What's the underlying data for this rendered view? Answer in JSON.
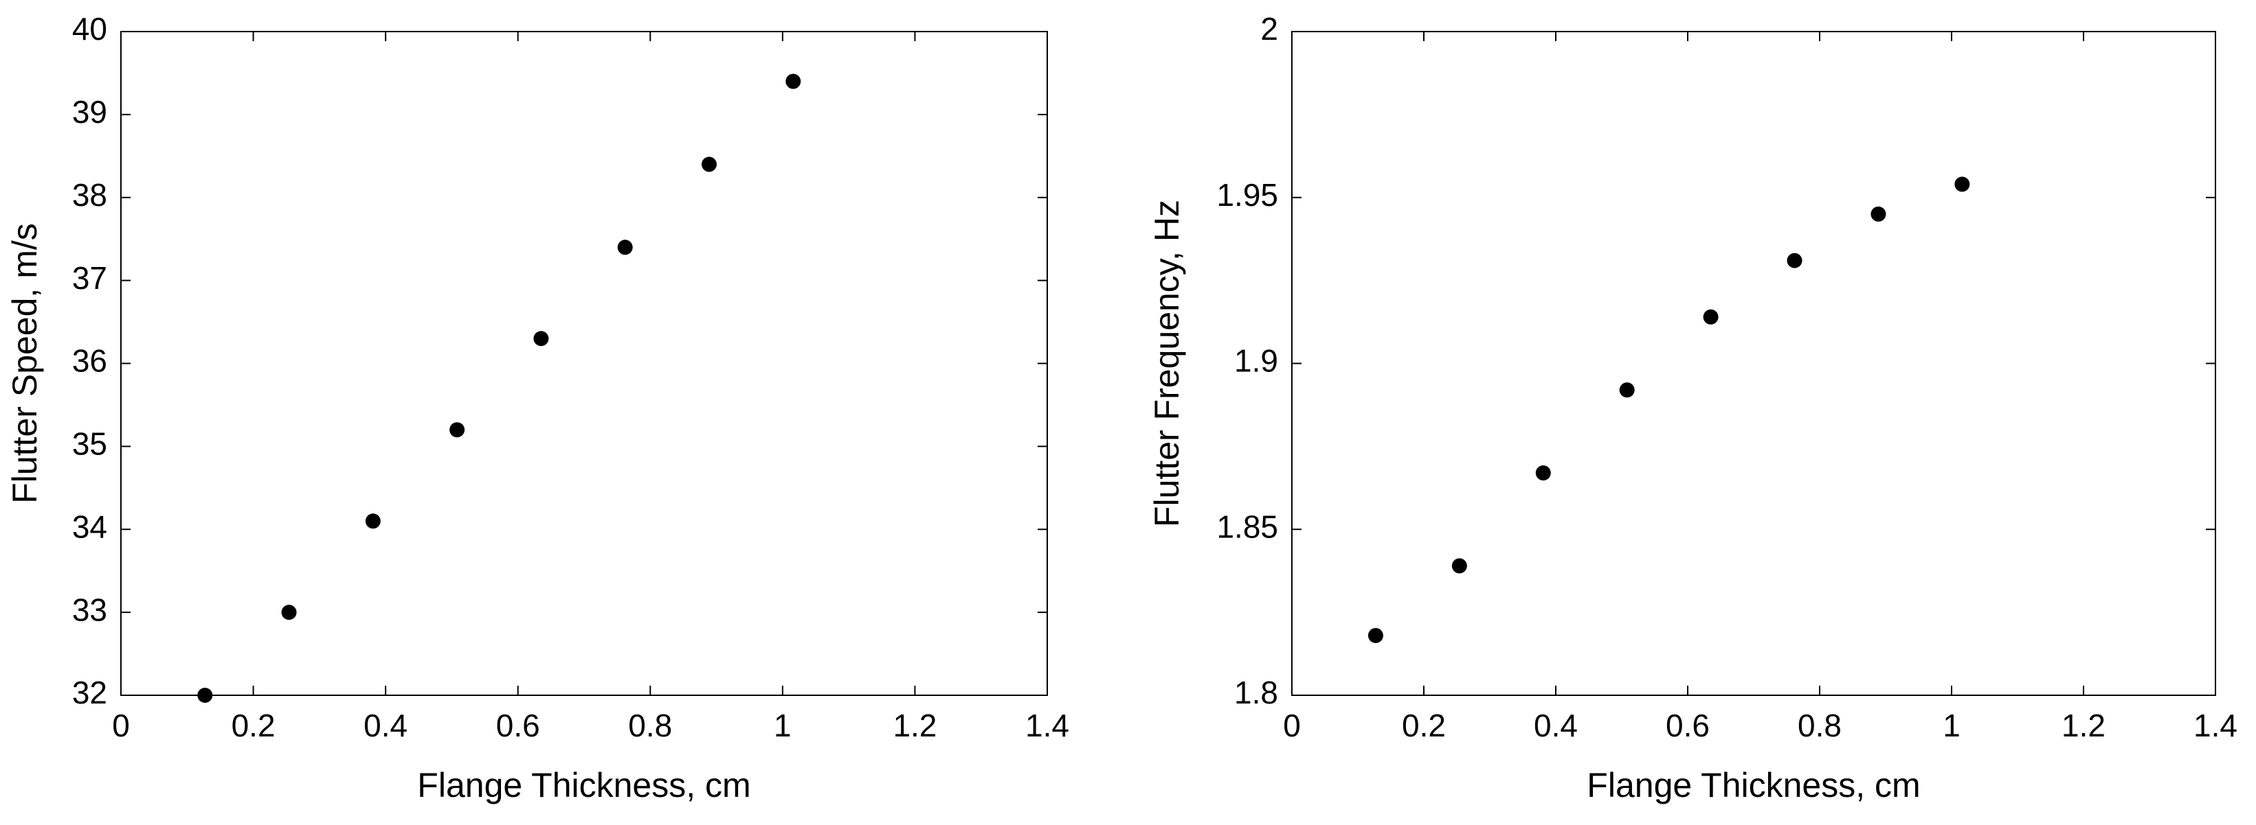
{
  "chart_data": [
    {
      "type": "scatter",
      "xlabel": "Flange Thickness, cm",
      "ylabel": "Flutter Speed, m/s",
      "x": [
        0.127,
        0.254,
        0.381,
        0.508,
        0.635,
        0.762,
        0.889,
        1.016
      ],
      "values": [
        32,
        33,
        34.1,
        35.2,
        36.3,
        37.4,
        38.4,
        39.4
      ],
      "color": "#000000",
      "xlim": [
        0,
        1.4
      ],
      "xticks": [
        0,
        0.2,
        0.4,
        0.6,
        0.8,
        1,
        1.2,
        1.4
      ],
      "ylim": [
        32,
        40
      ],
      "yticks": [
        32,
        33,
        34,
        35,
        36,
        37,
        38,
        39,
        40
      ],
      "grid": false
    },
    {
      "type": "scatter",
      "xlabel": "Flange Thickness, cm",
      "ylabel": "Flutter Frequency, Hz",
      "x": [
        0.127,
        0.254,
        0.381,
        0.508,
        0.635,
        0.762,
        0.889,
        1.016
      ],
      "values": [
        1.818,
        1.839,
        1.867,
        1.892,
        1.914,
        1.931,
        1.945,
        1.954
      ],
      "color": "#000000",
      "xlim": [
        0,
        1.4
      ],
      "xticks": [
        0,
        0.2,
        0.4,
        0.6,
        0.8,
        1,
        1.2,
        1.4
      ],
      "ylim": [
        1.8,
        2
      ],
      "yticks": [
        1.8,
        1.85,
        1.9,
        1.95,
        2
      ],
      "grid": false
    }
  ]
}
